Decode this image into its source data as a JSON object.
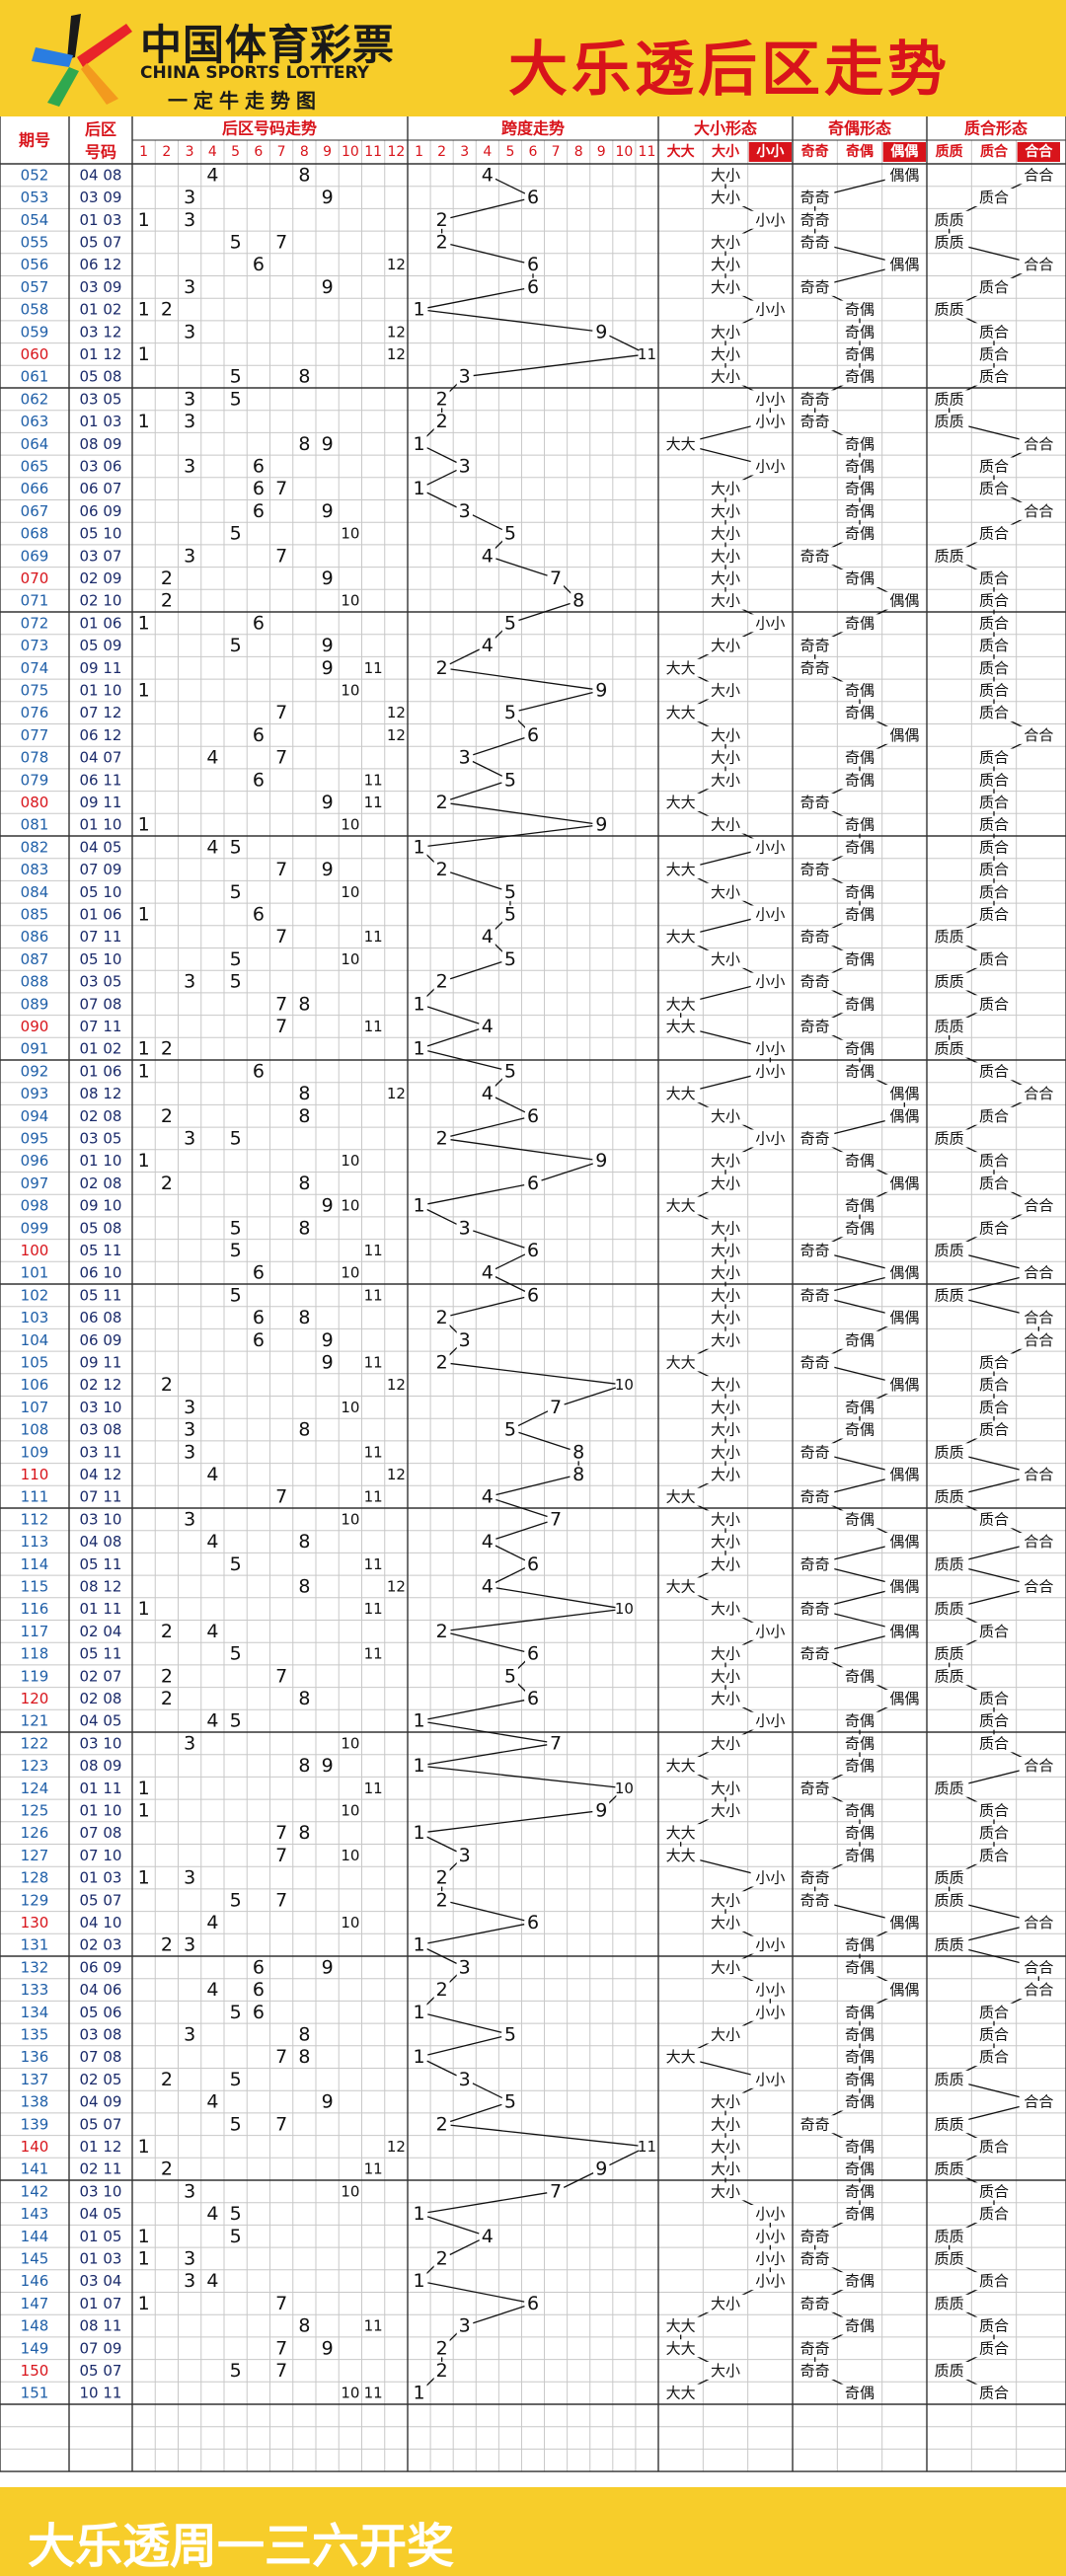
{
  "header": {
    "logo_cn": "中国体育彩票",
    "logo_en": "CHINA SPORTS LOTTERY",
    "logo_slogan": "一定牛走势图",
    "title": "大乐透后区走势"
  },
  "footer": {
    "text": "大乐透周一三六开奖"
  },
  "colors": {
    "header_bg": "#f7cd2a",
    "title_red": "#d8141b",
    "issue_blue": "#1f5fa8",
    "issue_red": "#d8141b",
    "grid_line": "#c8c8c8"
  },
  "chart_data": {
    "type": "table",
    "section_headers": {
      "issue": "期号",
      "rear": "后区号码",
      "trend": "后区号码走势",
      "span": "跨度走势",
      "size": "大小形态",
      "parity": "奇偶形态",
      "prime": "质合形态"
    },
    "trend_columns": [
      "1",
      "2",
      "3",
      "4",
      "5",
      "6",
      "7",
      "8",
      "9",
      "10",
      "11",
      "12"
    ],
    "span_columns": [
      "1",
      "2",
      "3",
      "4",
      "5",
      "6",
      "7",
      "8",
      "9",
      "10",
      "11"
    ],
    "size_columns": [
      "大大",
      "大小",
      "小小"
    ],
    "parity_columns": [
      "奇奇",
      "奇偶",
      "偶偶"
    ],
    "prime_columns": [
      "质质",
      "质合",
      "合合"
    ],
    "draws": [
      {
        "issue": "052",
        "nums": "04 08",
        "span": 4,
        "size": "大小",
        "parity": "偶偶",
        "prime": "合合"
      },
      {
        "issue": "053",
        "nums": "03 09",
        "span": 6,
        "size": "大小",
        "parity": "奇奇",
        "prime": "质合"
      },
      {
        "issue": "054",
        "nums": "01 03",
        "span": 2,
        "size": "小小",
        "parity": "奇奇",
        "prime": "质质"
      },
      {
        "issue": "055",
        "nums": "05 07",
        "span": 2,
        "size": "大小",
        "parity": "奇奇",
        "prime": "质质"
      },
      {
        "issue": "056",
        "nums": "06 12",
        "span": 6,
        "size": "大小",
        "parity": "偶偶",
        "prime": "合合"
      },
      {
        "issue": "057",
        "nums": "03 09",
        "span": 6,
        "size": "大小",
        "parity": "奇奇",
        "prime": "质合"
      },
      {
        "issue": "058",
        "nums": "01 02",
        "span": 1,
        "size": "小小",
        "parity": "奇偶",
        "prime": "质质"
      },
      {
        "issue": "059",
        "nums": "03 12",
        "span": 9,
        "size": "大小",
        "parity": "奇偶",
        "prime": "质合"
      },
      {
        "issue": "060",
        "nums": "01 12",
        "span": 11,
        "size": "大小",
        "parity": "奇偶",
        "prime": "质合"
      },
      {
        "issue": "061",
        "nums": "05 08",
        "span": 3,
        "size": "大小",
        "parity": "奇偶",
        "prime": "质合"
      },
      {
        "issue": "062",
        "nums": "03 05",
        "span": 2,
        "size": "小小",
        "parity": "奇奇",
        "prime": "质质"
      },
      {
        "issue": "063",
        "nums": "01 03",
        "span": 2,
        "size": "小小",
        "parity": "奇奇",
        "prime": "质质"
      },
      {
        "issue": "064",
        "nums": "08 09",
        "span": 1,
        "size": "大大",
        "parity": "奇偶",
        "prime": "合合"
      },
      {
        "issue": "065",
        "nums": "03 06",
        "span": 3,
        "size": "小小",
        "parity": "奇偶",
        "prime": "质合"
      },
      {
        "issue": "066",
        "nums": "06 07",
        "span": 1,
        "size": "大小",
        "parity": "奇偶",
        "prime": "质合"
      },
      {
        "issue": "067",
        "nums": "06 09",
        "span": 3,
        "size": "大小",
        "parity": "奇偶",
        "prime": "合合"
      },
      {
        "issue": "068",
        "nums": "05 10",
        "span": 5,
        "size": "大小",
        "parity": "奇偶",
        "prime": "质合"
      },
      {
        "issue": "069",
        "nums": "03 07",
        "span": 4,
        "size": "大小",
        "parity": "奇奇",
        "prime": "质质"
      },
      {
        "issue": "070",
        "nums": "02 09",
        "span": 7,
        "size": "大小",
        "parity": "奇偶",
        "prime": "质合"
      },
      {
        "issue": "071",
        "nums": "02 10",
        "span": 8,
        "size": "大小",
        "parity": "偶偶",
        "prime": "质合"
      },
      {
        "issue": "072",
        "nums": "01 06",
        "span": 5,
        "size": "小小",
        "parity": "奇偶",
        "prime": "质合"
      },
      {
        "issue": "073",
        "nums": "05 09",
        "span": 4,
        "size": "大小",
        "parity": "奇奇",
        "prime": "质合"
      },
      {
        "issue": "074",
        "nums": "09 11",
        "span": 2,
        "size": "大大",
        "parity": "奇奇",
        "prime": "质合"
      },
      {
        "issue": "075",
        "nums": "01 10",
        "span": 9,
        "size": "大小",
        "parity": "奇偶",
        "prime": "质合"
      },
      {
        "issue": "076",
        "nums": "07 12",
        "span": 5,
        "size": "大大",
        "parity": "奇偶",
        "prime": "质合"
      },
      {
        "issue": "077",
        "nums": "06 12",
        "span": 6,
        "size": "大小",
        "parity": "偶偶",
        "prime": "合合"
      },
      {
        "issue": "078",
        "nums": "04 07",
        "span": 3,
        "size": "大小",
        "parity": "奇偶",
        "prime": "质合"
      },
      {
        "issue": "079",
        "nums": "06 11",
        "span": 5,
        "size": "大小",
        "parity": "奇偶",
        "prime": "质合"
      },
      {
        "issue": "080",
        "nums": "09 11",
        "span": 2,
        "size": "大大",
        "parity": "奇奇",
        "prime": "质合"
      },
      {
        "issue": "081",
        "nums": "01 10",
        "span": 9,
        "size": "大小",
        "parity": "奇偶",
        "prime": "质合"
      },
      {
        "issue": "082",
        "nums": "04 05",
        "span": 1,
        "size": "小小",
        "parity": "奇偶",
        "prime": "质合"
      },
      {
        "issue": "083",
        "nums": "07 09",
        "span": 2,
        "size": "大大",
        "parity": "奇奇",
        "prime": "质合"
      },
      {
        "issue": "084",
        "nums": "05 10",
        "span": 5,
        "size": "大小",
        "parity": "奇偶",
        "prime": "质合"
      },
      {
        "issue": "085",
        "nums": "01 06",
        "span": 5,
        "size": "小小",
        "parity": "奇偶",
        "prime": "质合"
      },
      {
        "issue": "086",
        "nums": "07 11",
        "span": 4,
        "size": "大大",
        "parity": "奇奇",
        "prime": "质质"
      },
      {
        "issue": "087",
        "nums": "05 10",
        "span": 5,
        "size": "大小",
        "parity": "奇偶",
        "prime": "质合"
      },
      {
        "issue": "088",
        "nums": "03 05",
        "span": 2,
        "size": "小小",
        "parity": "奇奇",
        "prime": "质质"
      },
      {
        "issue": "089",
        "nums": "07 08",
        "span": 1,
        "size": "大大",
        "parity": "奇偶",
        "prime": "质合"
      },
      {
        "issue": "090",
        "nums": "07 11",
        "span": 4,
        "size": "大大",
        "parity": "奇奇",
        "prime": "质质"
      },
      {
        "issue": "091",
        "nums": "01 02",
        "span": 1,
        "size": "小小",
        "parity": "奇偶",
        "prime": "质质"
      },
      {
        "issue": "092",
        "nums": "01 06",
        "span": 5,
        "size": "小小",
        "parity": "奇偶",
        "prime": "质合"
      },
      {
        "issue": "093",
        "nums": "08 12",
        "span": 4,
        "size": "大大",
        "parity": "偶偶",
        "prime": "合合"
      },
      {
        "issue": "094",
        "nums": "02 08",
        "span": 6,
        "size": "大小",
        "parity": "偶偶",
        "prime": "质合"
      },
      {
        "issue": "095",
        "nums": "03 05",
        "span": 2,
        "size": "小小",
        "parity": "奇奇",
        "prime": "质质"
      },
      {
        "issue": "096",
        "nums": "01 10",
        "span": 9,
        "size": "大小",
        "parity": "奇偶",
        "prime": "质合"
      },
      {
        "issue": "097",
        "nums": "02 08",
        "span": 6,
        "size": "大小",
        "parity": "偶偶",
        "prime": "质合"
      },
      {
        "issue": "098",
        "nums": "09 10",
        "span": 1,
        "size": "大大",
        "parity": "奇偶",
        "prime": "合合"
      },
      {
        "issue": "099",
        "nums": "05 08",
        "span": 3,
        "size": "大小",
        "parity": "奇偶",
        "prime": "质合"
      },
      {
        "issue": "100",
        "nums": "05 11",
        "span": 6,
        "size": "大小",
        "parity": "奇奇",
        "prime": "质质"
      },
      {
        "issue": "101",
        "nums": "06 10",
        "span": 4,
        "size": "大小",
        "parity": "偶偶",
        "prime": "合合"
      },
      {
        "issue": "102",
        "nums": "05 11",
        "span": 6,
        "size": "大小",
        "parity": "奇奇",
        "prime": "质质"
      },
      {
        "issue": "103",
        "nums": "06 08",
        "span": 2,
        "size": "大小",
        "parity": "偶偶",
        "prime": "合合"
      },
      {
        "issue": "104",
        "nums": "06 09",
        "span": 3,
        "size": "大小",
        "parity": "奇偶",
        "prime": "合合"
      },
      {
        "issue": "105",
        "nums": "09 11",
        "span": 2,
        "size": "大大",
        "parity": "奇奇",
        "prime": "质合"
      },
      {
        "issue": "106",
        "nums": "02 12",
        "span": 10,
        "size": "大小",
        "parity": "偶偶",
        "prime": "质合"
      },
      {
        "issue": "107",
        "nums": "03 10",
        "span": 7,
        "size": "大小",
        "parity": "奇偶",
        "prime": "质合"
      },
      {
        "issue": "108",
        "nums": "03 08",
        "span": 5,
        "size": "大小",
        "parity": "奇偶",
        "prime": "质合"
      },
      {
        "issue": "109",
        "nums": "03 11",
        "span": 8,
        "size": "大小",
        "parity": "奇奇",
        "prime": "质质"
      },
      {
        "issue": "110",
        "nums": "04 12",
        "span": 8,
        "size": "大小",
        "parity": "偶偶",
        "prime": "合合"
      },
      {
        "issue": "111",
        "nums": "07 11",
        "span": 4,
        "size": "大大",
        "parity": "奇奇",
        "prime": "质质"
      },
      {
        "issue": "112",
        "nums": "03 10",
        "span": 7,
        "size": "大小",
        "parity": "奇偶",
        "prime": "质合"
      },
      {
        "issue": "113",
        "nums": "04 08",
        "span": 4,
        "size": "大小",
        "parity": "偶偶",
        "prime": "合合"
      },
      {
        "issue": "114",
        "nums": "05 11",
        "span": 6,
        "size": "大小",
        "parity": "奇奇",
        "prime": "质质"
      },
      {
        "issue": "115",
        "nums": "08 12",
        "span": 4,
        "size": "大大",
        "parity": "偶偶",
        "prime": "合合"
      },
      {
        "issue": "116",
        "nums": "01 11",
        "span": 10,
        "size": "大小",
        "parity": "奇奇",
        "prime": "质质"
      },
      {
        "issue": "117",
        "nums": "02 04",
        "span": 2,
        "size": "小小",
        "parity": "偶偶",
        "prime": "质合"
      },
      {
        "issue": "118",
        "nums": "05 11",
        "span": 6,
        "size": "大小",
        "parity": "奇奇",
        "prime": "质质"
      },
      {
        "issue": "119",
        "nums": "02 07",
        "span": 5,
        "size": "大小",
        "parity": "奇偶",
        "prime": "质质"
      },
      {
        "issue": "120",
        "nums": "02 08",
        "span": 6,
        "size": "大小",
        "parity": "偶偶",
        "prime": "质合"
      },
      {
        "issue": "121",
        "nums": "04 05",
        "span": 1,
        "size": "小小",
        "parity": "奇偶",
        "prime": "质合"
      },
      {
        "issue": "122",
        "nums": "03 10",
        "span": 7,
        "size": "大小",
        "parity": "奇偶",
        "prime": "质合"
      },
      {
        "issue": "123",
        "nums": "08 09",
        "span": 1,
        "size": "大大",
        "parity": "奇偶",
        "prime": "合合"
      },
      {
        "issue": "124",
        "nums": "01 11",
        "span": 10,
        "size": "大小",
        "parity": "奇奇",
        "prime": "质质"
      },
      {
        "issue": "125",
        "nums": "01 10",
        "span": 9,
        "size": "大小",
        "parity": "奇偶",
        "prime": "质合"
      },
      {
        "issue": "126",
        "nums": "07 08",
        "span": 1,
        "size": "大大",
        "parity": "奇偶",
        "prime": "质合"
      },
      {
        "issue": "127",
        "nums": "07 10",
        "span": 3,
        "size": "大大",
        "parity": "奇偶",
        "prime": "质合"
      },
      {
        "issue": "128",
        "nums": "01 03",
        "span": 2,
        "size": "小小",
        "parity": "奇奇",
        "prime": "质质"
      },
      {
        "issue": "129",
        "nums": "05 07",
        "span": 2,
        "size": "大小",
        "parity": "奇奇",
        "prime": "质质"
      },
      {
        "issue": "130",
        "nums": "04 10",
        "span": 6,
        "size": "大小",
        "parity": "偶偶",
        "prime": "合合"
      },
      {
        "issue": "131",
        "nums": "02 03",
        "span": 1,
        "size": "小小",
        "parity": "奇偶",
        "prime": "质质"
      },
      {
        "issue": "132",
        "nums": "06 09",
        "span": 3,
        "size": "大小",
        "parity": "奇偶",
        "prime": "合合"
      },
      {
        "issue": "133",
        "nums": "04 06",
        "span": 2,
        "size": "小小",
        "parity": "偶偶",
        "prime": "合合"
      },
      {
        "issue": "134",
        "nums": "05 06",
        "span": 1,
        "size": "小小",
        "parity": "奇偶",
        "prime": "质合"
      },
      {
        "issue": "135",
        "nums": "03 08",
        "span": 5,
        "size": "大小",
        "parity": "奇偶",
        "prime": "质合"
      },
      {
        "issue": "136",
        "nums": "07 08",
        "span": 1,
        "size": "大大",
        "parity": "奇偶",
        "prime": "质合"
      },
      {
        "issue": "137",
        "nums": "02 05",
        "span": 3,
        "size": "小小",
        "parity": "奇偶",
        "prime": "质质"
      },
      {
        "issue": "138",
        "nums": "04 09",
        "span": 5,
        "size": "大小",
        "parity": "奇偶",
        "prime": "合合"
      },
      {
        "issue": "139",
        "nums": "05 07",
        "span": 2,
        "size": "大小",
        "parity": "奇奇",
        "prime": "质质"
      },
      {
        "issue": "140",
        "nums": "01 12",
        "span": 11,
        "size": "大小",
        "parity": "奇偶",
        "prime": "质合"
      },
      {
        "issue": "141",
        "nums": "02 11",
        "span": 9,
        "size": "大小",
        "parity": "奇偶",
        "prime": "质质"
      },
      {
        "issue": "142",
        "nums": "03 10",
        "span": 7,
        "size": "大小",
        "parity": "奇偶",
        "prime": "质合"
      },
      {
        "issue": "143",
        "nums": "04 05",
        "span": 1,
        "size": "小小",
        "parity": "奇偶",
        "prime": "质合"
      },
      {
        "issue": "144",
        "nums": "01 05",
        "span": 4,
        "size": "小小",
        "parity": "奇奇",
        "prime": "质质"
      },
      {
        "issue": "145",
        "nums": "01 03",
        "span": 2,
        "size": "小小",
        "parity": "奇奇",
        "prime": "质质"
      },
      {
        "issue": "146",
        "nums": "03 04",
        "span": 1,
        "size": "小小",
        "parity": "奇偶",
        "prime": "质合"
      },
      {
        "issue": "147",
        "nums": "01 07",
        "span": 6,
        "size": "大小",
        "parity": "奇奇",
        "prime": "质质"
      },
      {
        "issue": "148",
        "nums": "08 11",
        "span": 3,
        "size": "大大",
        "parity": "奇偶",
        "prime": "质合"
      },
      {
        "issue": "149",
        "nums": "07 09",
        "span": 2,
        "size": "大大",
        "parity": "奇奇",
        "prime": "质合"
      },
      {
        "issue": "150",
        "nums": "05 07",
        "span": 2,
        "size": "大小",
        "parity": "奇奇",
        "prime": "质质"
      },
      {
        "issue": "151",
        "nums": "10 11",
        "span": 1,
        "size": "大大",
        "parity": "奇偶",
        "prime": "质合"
      }
    ]
  }
}
